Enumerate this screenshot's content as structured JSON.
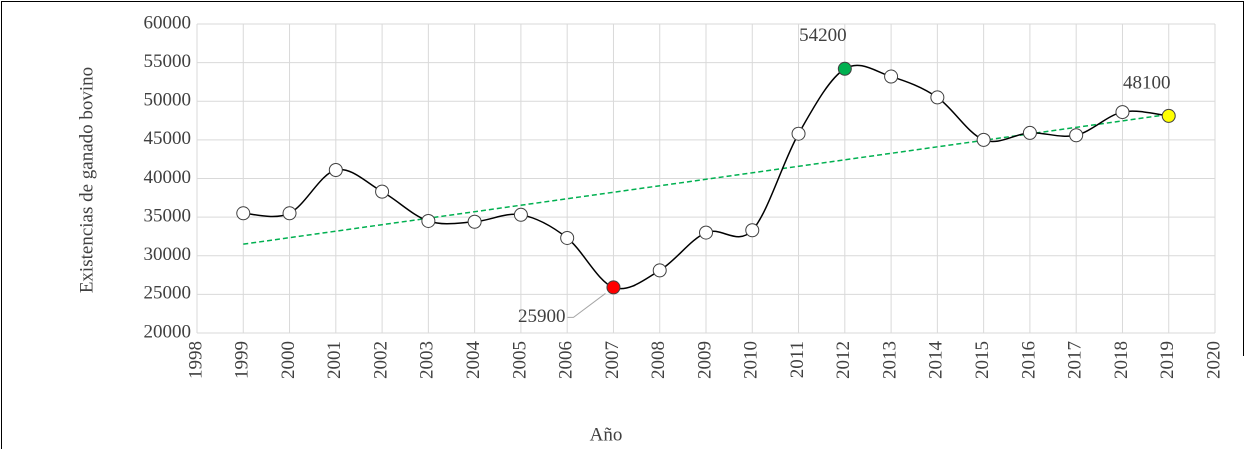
{
  "chart_data": {
    "type": "line",
    "x_label": "Año",
    "y_label": "Existencias de ganado bovino",
    "x": [
      1999,
      2000,
      2001,
      2002,
      2003,
      2004,
      2005,
      2006,
      2007,
      2008,
      2009,
      2010,
      2011,
      2012,
      2013,
      2014,
      2015,
      2016,
      2017,
      2018,
      2019
    ],
    "values": [
      35500,
      35500,
      41100,
      38300,
      34500,
      34400,
      35300,
      32300,
      25900,
      28100,
      33000,
      33300,
      45800,
      54200,
      53200,
      50500,
      45000,
      45900,
      45600,
      48600,
      48100
    ],
    "value_labels": [
      null,
      null,
      null,
      null,
      null,
      null,
      null,
      null,
      "25900",
      null,
      null,
      null,
      null,
      "54200",
      null,
      null,
      null,
      null,
      null,
      null,
      "48100"
    ],
    "point_colors": [
      "#ffffff",
      "#ffffff",
      "#ffffff",
      "#ffffff",
      "#ffffff",
      "#ffffff",
      "#ffffff",
      "#ffffff",
      "#ff0000",
      "#ffffff",
      "#ffffff",
      "#ffffff",
      "#ffffff",
      "#00b050",
      "#ffffff",
      "#ffffff",
      "#ffffff",
      "#ffffff",
      "#ffffff",
      "#ffffff",
      "#ffff00"
    ],
    "color": "#000000",
    "trendline": {
      "x": [
        1999,
        2019
      ],
      "values": [
        31500,
        48300
      ],
      "color": "#00b050"
    },
    "xlim": [
      1998,
      2020
    ],
    "xticks": [
      1998,
      1999,
      2000,
      2001,
      2002,
      2003,
      2004,
      2005,
      2006,
      2007,
      2008,
      2009,
      2010,
      2011,
      2012,
      2013,
      2014,
      2015,
      2016,
      2017,
      2018,
      2019,
      2020
    ],
    "ylim": [
      20000,
      60000
    ],
    "yticks": [
      20000,
      25000,
      30000,
      35000,
      40000,
      45000,
      50000,
      55000,
      60000
    ],
    "grid": true
  }
}
